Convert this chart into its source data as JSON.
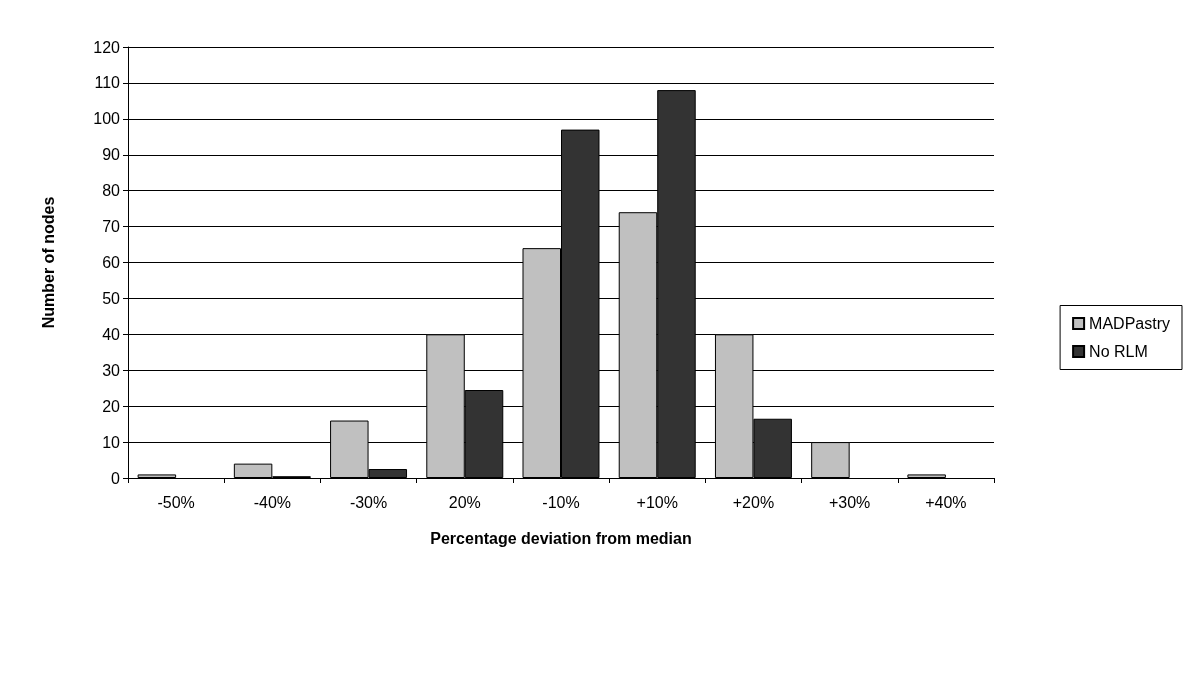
{
  "chart_data": {
    "type": "bar",
    "xlabel": "Percentage deviation from median",
    "ylabel": "Number of nodes",
    "categories": [
      "-50%",
      "-40%",
      "-30%",
      "20%",
      "-10%",
      "+10%",
      "+20%",
      "+30%",
      "+40%"
    ],
    "series": [
      {
        "name": "MADPastry",
        "color": "#c0c0c0",
        "values": [
          1,
          4,
          16,
          40,
          64,
          74,
          40,
          10,
          1
        ]
      },
      {
        "name": "No RLM",
        "color": "#333333",
        "values": [
          0,
          0.5,
          2.5,
          24.5,
          97,
          108,
          16.5,
          0,
          0
        ]
      }
    ],
    "ylim": [
      0,
      120
    ],
    "yticks": [
      0,
      10,
      20,
      30,
      40,
      50,
      60,
      70,
      80,
      90,
      100,
      110,
      120
    ],
    "grid": "y",
    "legend": "right"
  }
}
